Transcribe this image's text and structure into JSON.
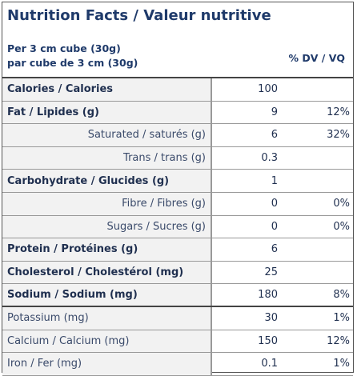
{
  "header": {
    "title": "Nutrition Facts / Valeur nutritive",
    "serving_en": "Per 3 cm cube (30g)",
    "serving_fr": "par cube de 3 cm (30g)",
    "dv_heading": "% DV / VQ"
  },
  "table": {
    "rows": [
      {
        "label": "Calories / Calories",
        "amount": "100"
      },
      {
        "label": "Fat / Lipides  (g)",
        "amount": "9",
        "dv": "12%"
      },
      {
        "label": "Saturated / saturés (g)",
        "amount": "6",
        "dv": "32%"
      },
      {
        "label": "Trans / trans (g)",
        "amount": "0.3"
      },
      {
        "label": "Carbohydrate / Glucides (g)",
        "amount": "1"
      },
      {
        "label": "Fibre / Fibres (g)",
        "amount": "0",
        "dv": "0%"
      },
      {
        "label": "Sugars / Sucres  (g)",
        "amount": "0",
        "dv": "0%"
      },
      {
        "label": "Protein /  Protéines (g)",
        "amount": "6"
      },
      {
        "label": "Cholesterol / Cholestérol (mg)",
        "amount": "25"
      },
      {
        "label": "Sodium / Sodium (mg)",
        "amount": "180",
        "dv": "8%"
      },
      {
        "label": "Potassium (mg)",
        "amount": "30",
        "dv": "1%"
      },
      {
        "label": "Calcium / Calcium (mg)",
        "amount": "150",
        "dv": "12%"
      },
      {
        "label": "Iron / Fer (mg)",
        "amount": "0.1",
        "dv": "1%"
      }
    ]
  }
}
